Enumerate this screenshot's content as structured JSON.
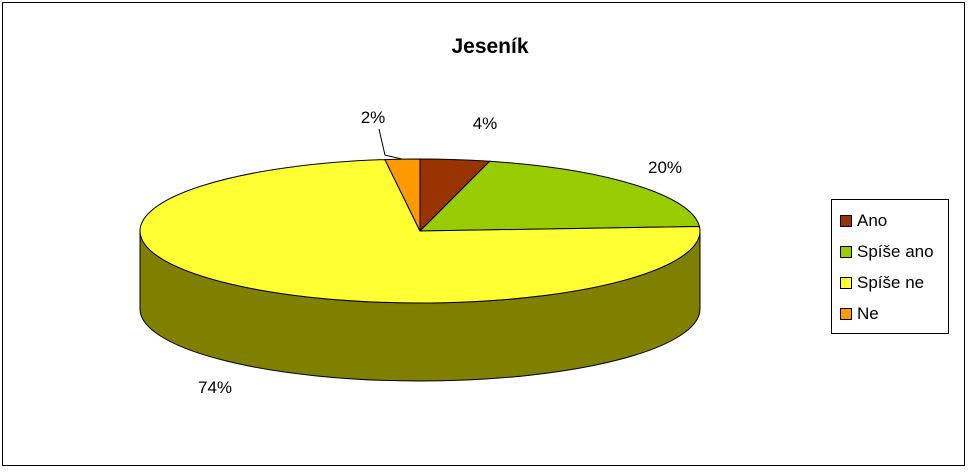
{
  "chart_data": {
    "type": "pie",
    "title": "Jeseník",
    "categories": [
      "Ano",
      "Spíše ano",
      "Spíše ne",
      "Ne"
    ],
    "values": [
      4,
      20,
      74,
      2
    ],
    "data_labels": [
      "4%",
      "20%",
      "74%",
      "2%"
    ],
    "colors": [
      "#993300",
      "#99CC00",
      "#FFFF33",
      "#FF9900"
    ],
    "side_colors": [
      "#5c1f00",
      "#5c7a00",
      "#808000",
      "#995c00"
    ],
    "legend_position": "right",
    "three_d": true
  }
}
